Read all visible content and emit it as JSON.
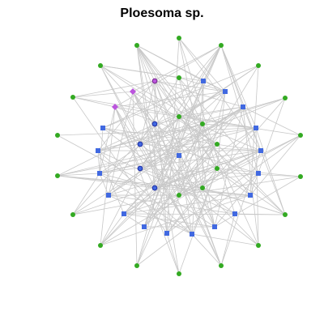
{
  "title": "Ploesoma sp.",
  "colors": {
    "edge": "#c8c8c8",
    "green": "#33aa22",
    "blue": "#4169e1",
    "purple": "#bb55dd",
    "ring_blue": "#2233aa",
    "ring_purple": "#7a2a90"
  },
  "node_types": {
    "g": "green-circle",
    "b": "blue-square",
    "d": "purple-diamond",
    "o": "ringed-circle-blue",
    "p": "ringed-circle-purple"
  }
}
